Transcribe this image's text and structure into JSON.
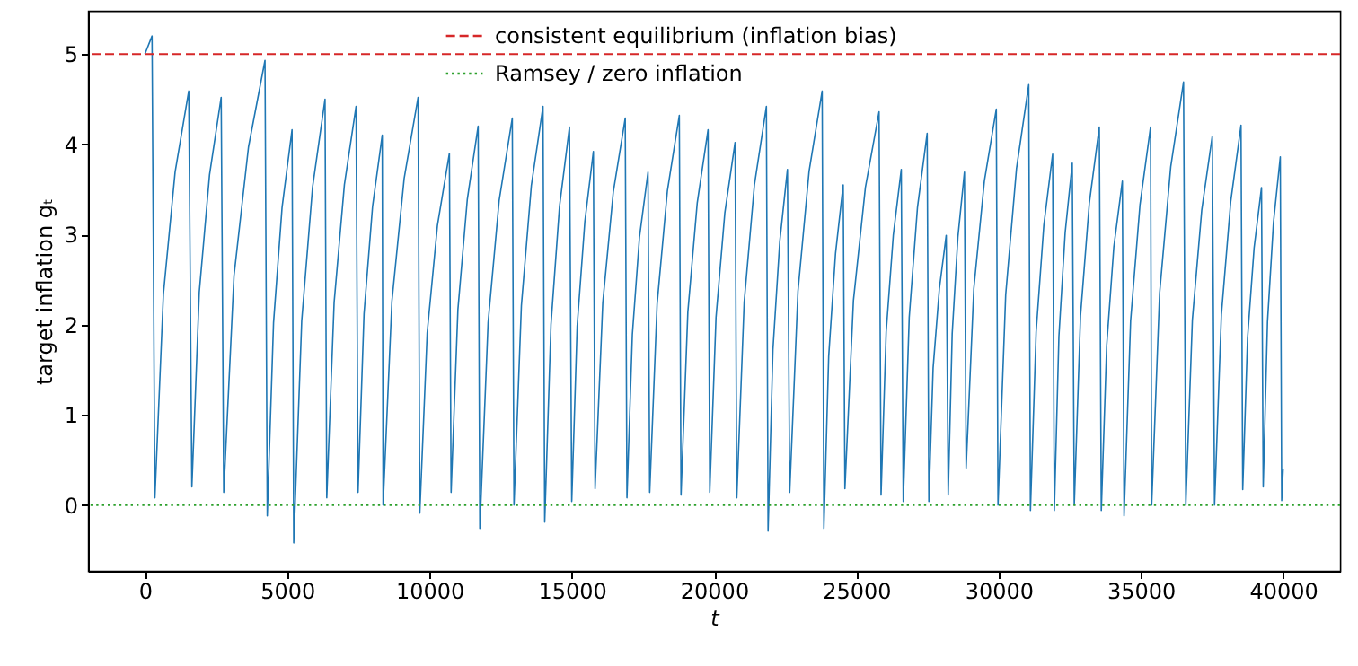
{
  "chart_data": {
    "type": "line",
    "xlabel": "t",
    "ylabel": "target inflation gₜ",
    "xlim": [
      -2000,
      42000
    ],
    "ylim": [
      -0.73,
      5.48
    ],
    "xticks": [
      0,
      5000,
      10000,
      15000,
      20000,
      25000,
      30000,
      35000,
      40000
    ],
    "yticks": [
      0,
      1,
      2,
      3,
      4,
      5
    ],
    "grid": false,
    "legend": "top",
    "marker": "none",
    "line_style": "solid",
    "series": [
      {
        "color": "#1f77b4",
        "x": [
          0,
          250,
          350,
          650,
          1060,
          1540,
          1650,
          1910,
          2270,
          2680,
          2770,
          3130,
          3640,
          4220,
          4300,
          4520,
          4820,
          5170,
          5230,
          5510,
          5890,
          6330,
          6390,
          6650,
          7010,
          7420,
          7490,
          7700,
          8000,
          8340,
          8370,
          8680,
          9110,
          9600,
          9660,
          9920,
          10280,
          10700,
          10760,
          11000,
          11330,
          11710,
          11770,
          12060,
          12450,
          12910,
          12970,
          13230,
          13580,
          13990,
          14050,
          14270,
          14570,
          14920,
          15000,
          15190,
          15460,
          15760,
          15820,
          16090,
          16460,
          16880,
          16940,
          17130,
          17380,
          17680,
          17740,
          18000,
          18360,
          18780,
          18840,
          19080,
          19410,
          19790,
          19850,
          20070,
          20380,
          20740,
          20800,
          21060,
          21420,
          21840,
          21900,
          22070,
          22310,
          22580,
          22660,
          22950,
          23340,
          23800,
          23860,
          24030,
          24270,
          24540,
          24600,
          24900,
          25320,
          25800,
          25870,
          26050,
          26300,
          26580,
          26650,
          26860,
          27150,
          27490,
          27550,
          27700,
          27920,
          28160,
          28230,
          28370,
          28570,
          28800,
          28860,
          29130,
          29500,
          29920,
          29980,
          30250,
          30630,
          31060,
          31120,
          31320,
          31590,
          31900,
          31960,
          32120,
          32340,
          32590,
          32660,
          32880,
          33190,
          33540,
          33610,
          33800,
          34050,
          34350,
          34410,
          34640,
          34970,
          35340,
          35380,
          35660,
          36050,
          36500,
          36580,
          36810,
          37140,
          37510,
          37590,
          37830,
          38160,
          38520,
          38580,
          38750,
          38980,
          39240,
          39300,
          39450,
          39660,
          39900,
          39950,
          40000
        ],
        "values": [
          5.0,
          5.2,
          0.08,
          2.34,
          3.69,
          4.59,
          0.2,
          2.36,
          3.66,
          4.52,
          0.14,
          2.54,
          3.97,
          4.93,
          -0.12,
          2.02,
          3.3,
          4.16,
          -0.42,
          2.04,
          3.52,
          4.5,
          0.08,
          2.25,
          3.55,
          4.42,
          0.14,
          2.12,
          3.31,
          4.1,
          0.0,
          2.26,
          3.62,
          4.52,
          -0.09,
          1.91,
          3.1,
          3.9,
          0.14,
          2.17,
          3.39,
          4.2,
          -0.26,
          2.02,
          3.38,
          4.29,
          0.0,
          2.21,
          3.54,
          4.42,
          -0.19,
          2.0,
          3.31,
          4.19,
          0.04,
          1.98,
          3.14,
          3.92,
          0.18,
          2.24,
          3.47,
          4.29,
          0.08,
          1.89,
          2.97,
          3.69,
          0.14,
          2.23,
          3.48,
          4.32,
          0.11,
          2.14,
          3.35,
          4.16,
          0.14,
          2.08,
          3.24,
          4.02,
          0.08,
          2.25,
          3.55,
          4.42,
          -0.29,
          1.72,
          2.92,
          3.72,
          0.14,
          2.37,
          3.7,
          4.59,
          -0.26,
          1.65,
          2.79,
          3.55,
          0.18,
          2.27,
          3.52,
          4.36,
          0.11,
          1.92,
          2.99,
          3.72,
          0.04,
          2.08,
          3.3,
          4.12,
          0.04,
          1.52,
          2.4,
          2.99,
          0.11,
          1.9,
          2.97,
          3.69,
          0.41,
          2.4,
          3.59,
          4.39,
          0.0,
          2.33,
          3.73,
          4.66,
          -0.06,
          1.92,
          3.1,
          3.89,
          -0.06,
          1.87,
          3.02,
          3.79,
          0.0,
          2.1,
          3.35,
          4.19,
          -0.06,
          1.77,
          2.86,
          3.59,
          -0.12,
          2.04,
          3.33,
          4.19,
          0.0,
          2.35,
          3.75,
          4.69,
          0.0,
          2.05,
          3.27,
          4.09,
          0.0,
          2.11,
          3.37,
          4.21,
          0.17,
          1.85,
          2.85,
          3.52,
          0.2,
          2.03,
          3.13,
          3.86,
          0.05,
          0.4
        ]
      }
    ],
    "ref_lines": [
      {
        "axis": "y",
        "value": 5,
        "label": "consistent equilibrium (inflation bias)",
        "color": "#d62728",
        "line_style": "dashed"
      },
      {
        "axis": "y",
        "value": 0,
        "label": "Ramsey / zero inflation",
        "color": "#2ca02c",
        "line_style": "dotted"
      }
    ]
  }
}
